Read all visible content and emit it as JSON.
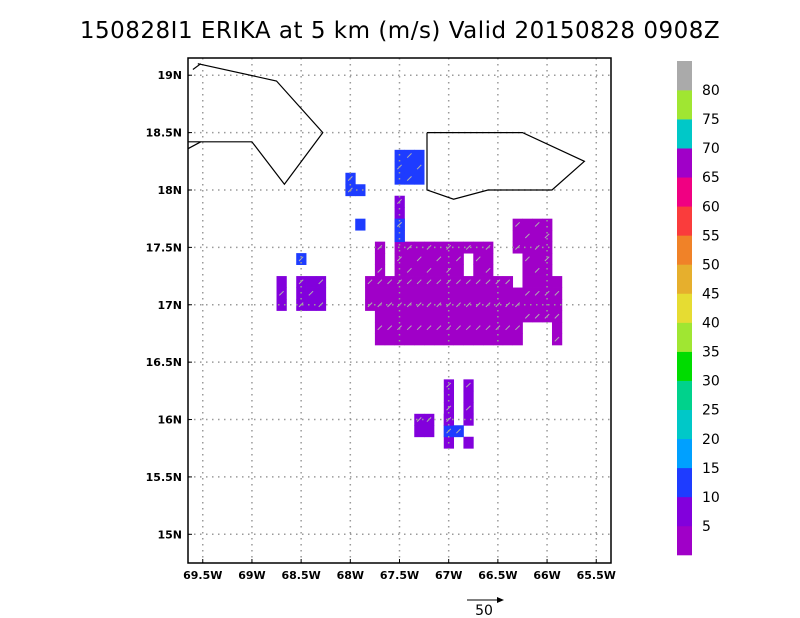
{
  "title": "150828I1 ERIKA at 5 km (m/s) Valid 20150828 0908Z",
  "map": {
    "lon_range": [
      -69.65,
      -65.35
    ],
    "lat_range": [
      14.75,
      19.15
    ],
    "lon_ticks": [
      {
        "value": -69.5,
        "label": "69.5W"
      },
      {
        "value": -69.0,
        "label": "69W"
      },
      {
        "value": -68.5,
        "label": "68.5W"
      },
      {
        "value": -68.0,
        "label": "68W"
      },
      {
        "value": -67.5,
        "label": "67.5W"
      },
      {
        "value": -67.0,
        "label": "67W"
      },
      {
        "value": -66.5,
        "label": "66.5W"
      },
      {
        "value": -66.0,
        "label": "66W"
      },
      {
        "value": -65.5,
        "label": "65.5W"
      }
    ],
    "lat_ticks": [
      {
        "value": 15.0,
        "label": "15N"
      },
      {
        "value": 15.5,
        "label": "15.5N"
      },
      {
        "value": 16.0,
        "label": "16N"
      },
      {
        "value": 16.5,
        "label": "16.5N"
      },
      {
        "value": 17.0,
        "label": "17N"
      },
      {
        "value": 17.5,
        "label": "17.5N"
      },
      {
        "value": 18.0,
        "label": "18N"
      },
      {
        "value": 18.5,
        "label": "18.5N"
      },
      {
        "value": 19.0,
        "label": "19N"
      }
    ],
    "grid": true,
    "coastlines": [
      [
        [
          -69.55,
          19.1
        ],
        [
          -68.75,
          18.95
        ],
        [
          -68.28,
          18.5
        ],
        [
          -68.67,
          18.05
        ],
        [
          -69.0,
          18.42
        ],
        [
          -69.65,
          18.42
        ]
      ],
      [
        [
          -69.65,
          18.36
        ],
        [
          -69.52,
          18.42
        ]
      ],
      [
        [
          -69.52,
          19.1
        ],
        [
          -69.6,
          19.05
        ]
      ],
      [
        [
          -67.22,
          18.5
        ],
        [
          -66.25,
          18.5
        ],
        [
          -65.62,
          18.25
        ],
        [
          -65.95,
          18.0
        ],
        [
          -66.6,
          18.0
        ],
        [
          -66.95,
          17.92
        ],
        [
          -67.22,
          18.0
        ],
        [
          -67.22,
          18.5
        ]
      ]
    ]
  },
  "wind_field": {
    "unit": "m/s",
    "cell_deg": 0.1,
    "regions": [
      {
        "lon": [
          -67.95,
          -65.85
        ],
        "lat": [
          16.65,
          17.25
        ],
        "speed": 4
      },
      {
        "lon": [
          -66.45,
          -65.95
        ],
        "lat": [
          17.25,
          17.75
        ],
        "speed": 4
      },
      {
        "lon": [
          -67.75,
          -66.55
        ],
        "lat": [
          17.25,
          17.55
        ],
        "speed": 4
      },
      {
        "lon": [
          -68.75,
          -68.25
        ],
        "lat": [
          16.95,
          17.25
        ],
        "speed": 5
      },
      {
        "lon": [
          -67.55,
          -67.45
        ],
        "lat": [
          17.55,
          17.95
        ],
        "speed": 5
      },
      {
        "lon": [
          -67.35,
          -66.95
        ],
        "lat": [
          15.85,
          16.05
        ],
        "speed": 5
      },
      {
        "lon": [
          -67.05,
          -66.75
        ],
        "lat": [
          15.75,
          16.35
        ],
        "speed": 5
      },
      {
        "lon": [
          -67.65,
          -67.45
        ],
        "lat": [
          17.55,
          17.75
        ],
        "speed": 11
      },
      {
        "lon": [
          -67.65,
          -67.25
        ],
        "lat": [
          18.05,
          18.35
        ],
        "speed": 11
      },
      {
        "lon": [
          -68.05,
          -67.85
        ],
        "lat": [
          17.95,
          18.05
        ],
        "speed": 11
      },
      {
        "lon": [
          -68.15,
          -67.95
        ],
        "lat": [
          18.05,
          18.15
        ],
        "speed": 11
      },
      {
        "lon": [
          -67.95,
          -67.85
        ],
        "lat": [
          17.65,
          17.75
        ],
        "speed": 11
      },
      {
        "lon": [
          -67.05,
          -66.85
        ],
        "lat": [
          15.85,
          15.95
        ],
        "speed": 11
      },
      {
        "lon": [
          -68.55,
          -68.45
        ],
        "lat": [
          17.35,
          17.45
        ],
        "speed": 11
      }
    ],
    "holes": [
      {
        "lon": [
          -66.45,
          -66.25
        ],
        "lat": [
          17.15,
          17.45
        ]
      },
      {
        "lon": [
          -66.95,
          -66.75
        ],
        "lat": [
          17.25,
          17.45
        ]
      },
      {
        "lon": [
          -67.95,
          -67.75
        ],
        "lat": [
          16.65,
          16.95
        ]
      },
      {
        "lon": [
          -66.35,
          -65.95
        ],
        "lat": [
          16.65,
          16.85
        ]
      }
    ],
    "vector_direction_deg": 225,
    "reference_vector": {
      "speed": 50,
      "label": "50"
    }
  },
  "colorbar": {
    "colors": [
      "#a000c8",
      "#8200dc",
      "#1e3cff",
      "#00a0ff",
      "#00c8c8",
      "#00d28c",
      "#00dc00",
      "#a0e632",
      "#e6dc32",
      "#e6af2d",
      "#f08228",
      "#fa3c3c",
      "#f00082",
      "#a000c8",
      "#00c8c8",
      "#a0e632",
      "#aaaaaa"
    ],
    "labels": [
      "5",
      "10",
      "15",
      "20",
      "25",
      "30",
      "35",
      "40",
      "45",
      "50",
      "55",
      "60",
      "65",
      "70",
      "75",
      "80"
    ],
    "min": 0,
    "step": 5
  }
}
